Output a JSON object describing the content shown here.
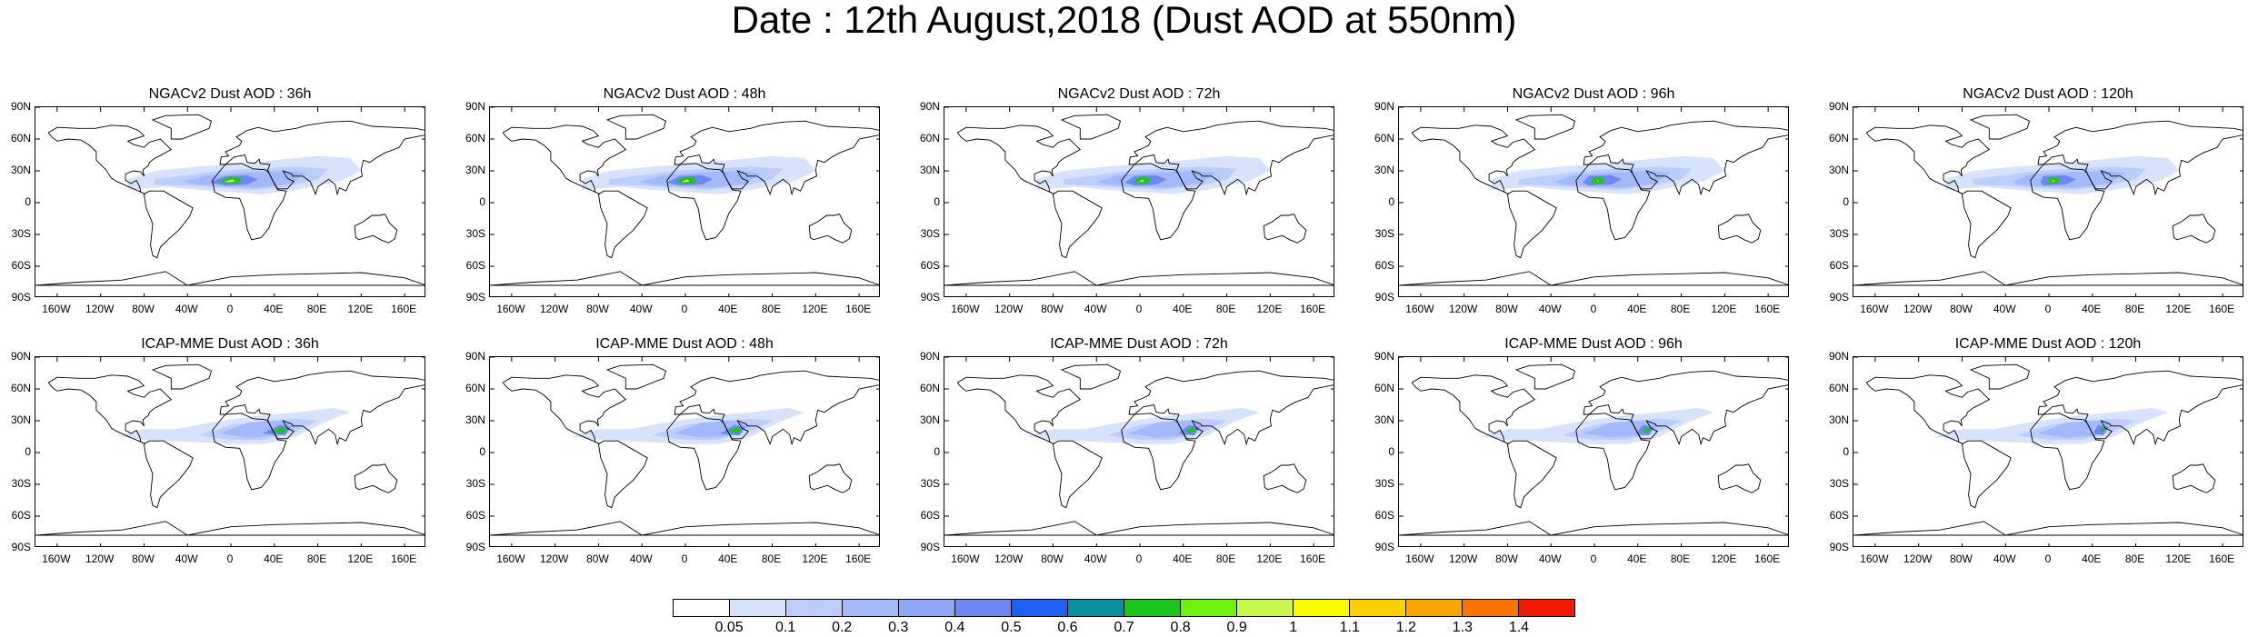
{
  "title": "Date : 12th August,2018 (Dust AOD at 550nm)",
  "lat_ticks": [
    "90N",
    "60N",
    "30N",
    "0",
    "30S",
    "60S",
    "90S"
  ],
  "lon_ticks": [
    "160W",
    "120W",
    "80W",
    "40W",
    "0",
    "40E",
    "80E",
    "120E",
    "160E"
  ],
  "lat_tick_values": [
    90,
    60,
    30,
    0,
    -30,
    -60,
    -90
  ],
  "lon_tick_values": [
    -160,
    -120,
    -80,
    -40,
    0,
    40,
    80,
    120,
    160
  ],
  "panels": [
    {
      "title": "NGACv2 Dust AOD : 36h",
      "model": "NGACv2",
      "lead": "36h"
    },
    {
      "title": "NGACv2 Dust AOD : 48h",
      "model": "NGACv2",
      "lead": "48h"
    },
    {
      "title": "NGACv2 Dust AOD : 72h",
      "model": "NGACv2",
      "lead": "72h"
    },
    {
      "title": "NGACv2 Dust AOD : 96h",
      "model": "NGACv2",
      "lead": "96h"
    },
    {
      "title": "NGACv2 Dust AOD : 120h",
      "model": "NGACv2",
      "lead": "120h"
    },
    {
      "title": "ICAP-MME Dust AOD : 36h",
      "model": "ICAP-MME",
      "lead": "36h"
    },
    {
      "title": "ICAP-MME Dust AOD : 48h",
      "model": "ICAP-MME",
      "lead": "48h"
    },
    {
      "title": "ICAP-MME Dust AOD : 72h",
      "model": "ICAP-MME",
      "lead": "72h"
    },
    {
      "title": "ICAP-MME Dust AOD : 96h",
      "model": "ICAP-MME",
      "lead": "96h"
    },
    {
      "title": "ICAP-MME Dust AOD : 120h",
      "model": "ICAP-MME",
      "lead": "120h"
    }
  ],
  "colorbar": {
    "labels": [
      "0.05",
      "0.1",
      "0.2",
      "0.3",
      "0.4",
      "0.5",
      "0.6",
      "0.7",
      "0.8",
      "0.9",
      "1",
      "1.1",
      "1.2",
      "1.3",
      "1.4"
    ],
    "colors": [
      "#ffffff",
      "#d7e3fb",
      "#bccdfb",
      "#a4b9fa",
      "#8ea5f8",
      "#6f86f5",
      "#1f5ff2",
      "#0c8fa0",
      "#1cc41c",
      "#6ff20d",
      "#c7f94c",
      "#fbfb00",
      "#fbcf00",
      "#fba500",
      "#f97400",
      "#f21b00"
    ]
  }
}
